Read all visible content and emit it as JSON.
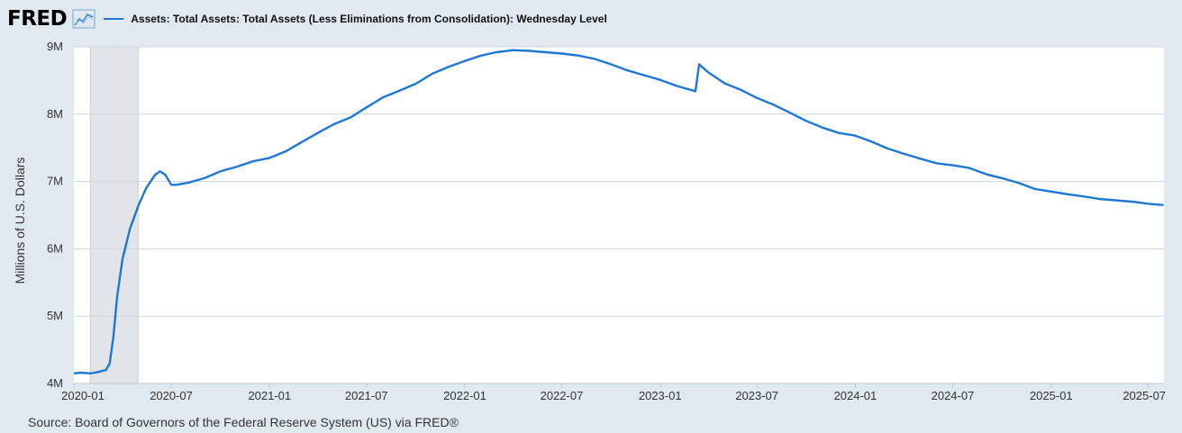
{
  "header": {
    "logo_text": "FRED",
    "logo_icon": "line-chart-icon"
  },
  "footer": {
    "source": "Source: Board of Governors of the Federal Reserve System (US) via FRED®"
  },
  "chart_data": {
    "type": "line",
    "title": "",
    "xlabel": "",
    "ylabel": "Millions of U.S. Dollars",
    "ylim": [
      4000000,
      9000000
    ],
    "xlim": [
      "2020-01-01",
      "2025-07-31"
    ],
    "grid": true,
    "legend": "top-left",
    "y_ticks": [
      {
        "value": 4000000,
        "label": "4M"
      },
      {
        "value": 5000000,
        "label": "5M"
      },
      {
        "value": 6000000,
        "label": "6M"
      },
      {
        "value": 7000000,
        "label": "7M"
      },
      {
        "value": 8000000,
        "label": "8M"
      },
      {
        "value": 9000000,
        "label": "9M"
      }
    ],
    "x_ticks": [
      {
        "value": "2020-01-01",
        "label": "2020-01"
      },
      {
        "value": "2020-07-01",
        "label": "2020-07"
      },
      {
        "value": "2021-01-01",
        "label": "2021-01"
      },
      {
        "value": "2021-07-01",
        "label": "2021-07"
      },
      {
        "value": "2022-01-01",
        "label": "2022-01"
      },
      {
        "value": "2022-07-01",
        "label": "2022-07"
      },
      {
        "value": "2023-01-01",
        "label": "2023-01"
      },
      {
        "value": "2023-07-01",
        "label": "2023-07"
      },
      {
        "value": "2024-01-01",
        "label": "2024-01"
      },
      {
        "value": "2024-07-01",
        "label": "2024-07"
      },
      {
        "value": "2025-01-01",
        "label": "2025-01"
      },
      {
        "value": "2025-07-01",
        "label": "2025-07"
      }
    ],
    "recession": {
      "start": "2020-02-01",
      "end": "2020-04-30",
      "color": "#e1e5ea"
    },
    "series": [
      {
        "name": "Assets: Total Assets: Total Assets (Less Eliminations from Consolidation): Wednesday Level",
        "color": "#1f77d4",
        "x": [
          "2020-01-01",
          "2020-01-15",
          "2020-02-01",
          "2020-02-15",
          "2020-03-01",
          "2020-03-08",
          "2020-03-15",
          "2020-03-22",
          "2020-04-01",
          "2020-04-15",
          "2020-05-01",
          "2020-05-15",
          "2020-06-01",
          "2020-06-10",
          "2020-06-20",
          "2020-07-01",
          "2020-07-10",
          "2020-08-01",
          "2020-09-01",
          "2020-10-01",
          "2020-11-01",
          "2020-12-01",
          "2021-01-01",
          "2021-02-01",
          "2021-03-01",
          "2021-04-01",
          "2021-05-01",
          "2021-06-01",
          "2021-07-01",
          "2021-08-01",
          "2021-09-01",
          "2021-10-01",
          "2021-11-01",
          "2021-12-01",
          "2022-01-01",
          "2022-02-01",
          "2022-03-01",
          "2022-04-01",
          "2022-05-01",
          "2022-06-01",
          "2022-07-01",
          "2022-08-01",
          "2022-09-01",
          "2022-10-01",
          "2022-11-01",
          "2022-12-01",
          "2023-01-01",
          "2023-02-01",
          "2023-03-08",
          "2023-03-15",
          "2023-03-22",
          "2023-04-01",
          "2023-05-01",
          "2023-06-01",
          "2023-07-01",
          "2023-08-01",
          "2023-09-01",
          "2023-10-01",
          "2023-11-01",
          "2023-12-01",
          "2024-01-01",
          "2024-02-01",
          "2024-03-01",
          "2024-04-01",
          "2024-05-01",
          "2024-06-01",
          "2024-07-01",
          "2024-08-01",
          "2024-09-01",
          "2024-10-01",
          "2024-11-01",
          "2024-12-01",
          "2025-01-01",
          "2025-02-01",
          "2025-03-01",
          "2025-04-01",
          "2025-05-01",
          "2025-06-01",
          "2025-07-01",
          "2025-07-30"
        ],
        "values": [
          4150000,
          4160000,
          4150000,
          4170000,
          4200000,
          4300000,
          4700000,
          5300000,
          5850000,
          6300000,
          6650000,
          6900000,
          7100000,
          7150000,
          7100000,
          6950000,
          6950000,
          6980000,
          7050000,
          7150000,
          7220000,
          7300000,
          7350000,
          7450000,
          7580000,
          7720000,
          7850000,
          7950000,
          8100000,
          8250000,
          8350000,
          8450000,
          8600000,
          8700000,
          8790000,
          8870000,
          8920000,
          8950000,
          8940000,
          8920000,
          8900000,
          8870000,
          8820000,
          8740000,
          8650000,
          8580000,
          8510000,
          8420000,
          8340000,
          8740000,
          8690000,
          8620000,
          8460000,
          8360000,
          8240000,
          8140000,
          8020000,
          7900000,
          7800000,
          7720000,
          7680000,
          7590000,
          7490000,
          7410000,
          7340000,
          7270000,
          7240000,
          7200000,
          7110000,
          7050000,
          6980000,
          6890000,
          6850000,
          6810000,
          6780000,
          6740000,
          6720000,
          6700000,
          6670000,
          6650000
        ]
      }
    ]
  }
}
